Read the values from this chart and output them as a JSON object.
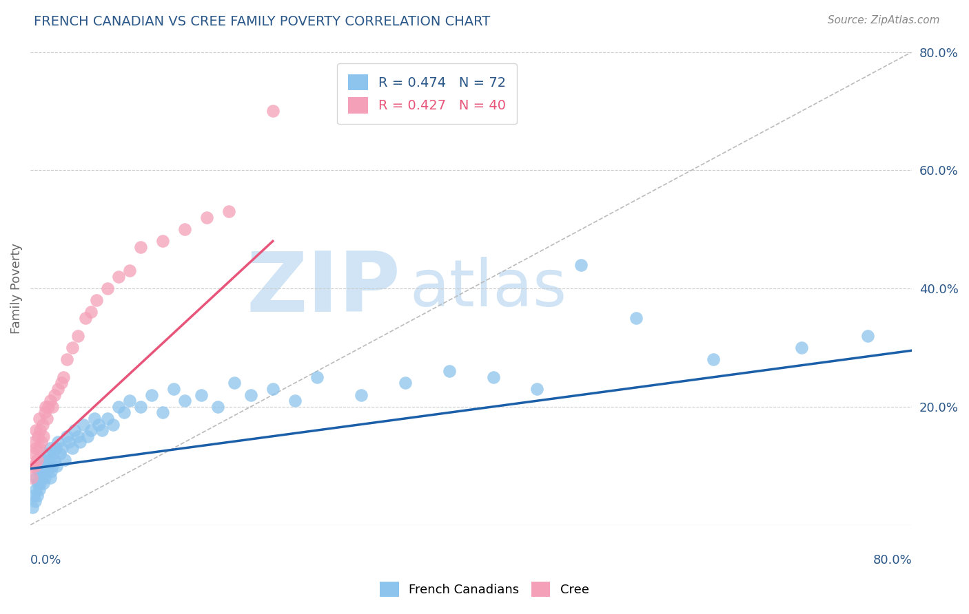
{
  "title": "FRENCH CANADIAN VS CREE FAMILY POVERTY CORRELATION CHART",
  "source": "Source: ZipAtlas.com",
  "ylabel": "Family Poverty",
  "xlim": [
    0.0,
    0.8
  ],
  "ylim": [
    0.0,
    0.8
  ],
  "french_R": 0.474,
  "french_N": 72,
  "cree_R": 0.427,
  "cree_N": 40,
  "french_color": "#8DC4ED",
  "cree_color": "#F4A0B8",
  "french_line_color": "#1A5FA8",
  "cree_line_color": "#E8557A",
  "bg_color": "#FFFFFF",
  "grid_color": "#CCCCCC",
  "title_color": "#2a5788",
  "watermark_color": "#D0E4F5",
  "legend_fc": "#FFFFFF",
  "legend_ec": "#CCCCCC",
  "french_scatter_x": [
    0.002,
    0.003,
    0.004,
    0.005,
    0.005,
    0.006,
    0.007,
    0.008,
    0.008,
    0.009,
    0.01,
    0.01,
    0.011,
    0.012,
    0.012,
    0.013,
    0.014,
    0.015,
    0.015,
    0.016,
    0.017,
    0.018,
    0.018,
    0.019,
    0.02,
    0.021,
    0.022,
    0.023,
    0.024,
    0.025,
    0.027,
    0.029,
    0.031,
    0.033,
    0.035,
    0.038,
    0.04,
    0.043,
    0.045,
    0.048,
    0.052,
    0.055,
    0.058,
    0.062,
    0.065,
    0.07,
    0.075,
    0.08,
    0.085,
    0.09,
    0.1,
    0.11,
    0.12,
    0.13,
    0.14,
    0.155,
    0.17,
    0.185,
    0.2,
    0.22,
    0.24,
    0.26,
    0.3,
    0.34,
    0.38,
    0.42,
    0.46,
    0.5,
    0.55,
    0.62,
    0.7,
    0.76
  ],
  "french_scatter_y": [
    0.03,
    0.05,
    0.04,
    0.06,
    0.08,
    0.05,
    0.07,
    0.06,
    0.09,
    0.07,
    0.08,
    0.1,
    0.09,
    0.07,
    0.11,
    0.08,
    0.1,
    0.09,
    0.12,
    0.1,
    0.11,
    0.08,
    0.13,
    0.09,
    0.1,
    0.12,
    0.11,
    0.13,
    0.1,
    0.14,
    0.12,
    0.13,
    0.11,
    0.15,
    0.14,
    0.13,
    0.16,
    0.15,
    0.14,
    0.17,
    0.15,
    0.16,
    0.18,
    0.17,
    0.16,
    0.18,
    0.17,
    0.2,
    0.19,
    0.21,
    0.2,
    0.22,
    0.19,
    0.23,
    0.21,
    0.22,
    0.2,
    0.24,
    0.22,
    0.23,
    0.21,
    0.25,
    0.22,
    0.24,
    0.26,
    0.25,
    0.23,
    0.44,
    0.35,
    0.28,
    0.3,
    0.32
  ],
  "cree_scatter_x": [
    0.001,
    0.002,
    0.003,
    0.003,
    0.004,
    0.005,
    0.005,
    0.006,
    0.007,
    0.008,
    0.008,
    0.009,
    0.01,
    0.011,
    0.012,
    0.013,
    0.014,
    0.015,
    0.016,
    0.018,
    0.02,
    0.022,
    0.025,
    0.028,
    0.03,
    0.033,
    0.038,
    0.043,
    0.05,
    0.055,
    0.06,
    0.07,
    0.08,
    0.09,
    0.1,
    0.12,
    0.14,
    0.16,
    0.18,
    0.22
  ],
  "cree_scatter_y": [
    0.08,
    0.1,
    0.12,
    0.14,
    0.1,
    0.13,
    0.16,
    0.11,
    0.15,
    0.13,
    0.18,
    0.16,
    0.14,
    0.17,
    0.15,
    0.19,
    0.2,
    0.18,
    0.2,
    0.21,
    0.2,
    0.22,
    0.23,
    0.24,
    0.25,
    0.28,
    0.3,
    0.32,
    0.35,
    0.36,
    0.38,
    0.4,
    0.42,
    0.43,
    0.47,
    0.48,
    0.5,
    0.52,
    0.53,
    0.7
  ],
  "fr_trend_x": [
    0.0,
    0.8
  ],
  "fr_trend_y": [
    0.095,
    0.295
  ],
  "cr_trend_x": [
    0.0,
    0.22
  ],
  "cr_trend_y": [
    0.1,
    0.48
  ]
}
